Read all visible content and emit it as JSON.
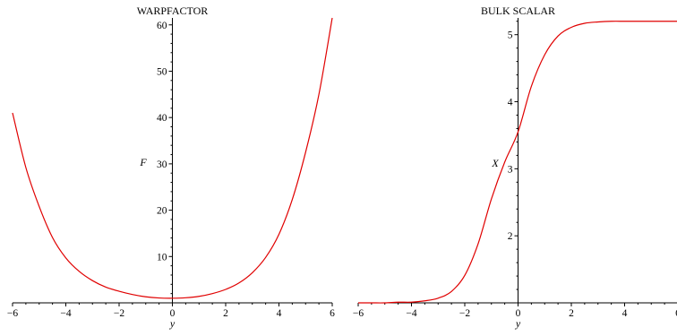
{
  "chart_data": [
    {
      "type": "line",
      "title": "WARPFACTOR",
      "xlabel": "y",
      "ylabel": "F",
      "xlim": [
        -6,
        6
      ],
      "ylim": [
        0,
        61.5
      ],
      "grid": false,
      "x_ticks": [
        -6,
        -4,
        -2,
        0,
        2,
        4,
        6
      ],
      "y_ticks": [
        10,
        20,
        30,
        40,
        50,
        60
      ],
      "series": [
        {
          "color": "#e00000",
          "x": [
            -6,
            -5.5,
            -5,
            -4.5,
            -4,
            -3.5,
            -3,
            -2.5,
            -2,
            -1.5,
            -1,
            -0.5,
            0,
            0.5,
            1,
            1.5,
            2,
            2.5,
            3,
            3.5,
            4,
            4.5,
            5,
            5.5,
            6
          ],
          "y": [
            41,
            29.2,
            20.8,
            14.1,
            9.7,
            6.8,
            4.8,
            3.4,
            2.5,
            1.8,
            1.3,
            1.05,
            1.0,
            1.1,
            1.4,
            2.0,
            2.9,
            4.3,
            6.5,
            9.8,
            14.8,
            22.3,
            32.5,
            45.0,
            61.5
          ]
        }
      ]
    },
    {
      "type": "line",
      "title": "BULK SCALAR",
      "xlabel": "y",
      "ylabel": "X",
      "xlim": [
        -6,
        6
      ],
      "ylim": [
        1,
        5.25
      ],
      "grid": false,
      "x_ticks": [
        -6,
        -4,
        -2,
        0,
        2,
        4,
        6
      ],
      "y_ticks": [
        2,
        3,
        4,
        5
      ],
      "series": [
        {
          "color": "#e00000",
          "x": [
            -6,
            -5.5,
            -5,
            -4.5,
            -4,
            -3.5,
            -3,
            -2.5,
            -2,
            -1.5,
            -1,
            -0.5,
            0,
            0.5,
            1,
            1.5,
            2,
            2.5,
            3,
            3.5,
            4,
            4.5,
            5,
            5.5,
            6
          ],
          "y": [
            1.0,
            1.0,
            1.0,
            1.01,
            1.01,
            1.03,
            1.07,
            1.17,
            1.41,
            1.88,
            2.55,
            3.1,
            3.55,
            4.23,
            4.7,
            4.98,
            5.11,
            5.17,
            5.19,
            5.2,
            5.2,
            5.2,
            5.2,
            5.2,
            5.2
          ]
        }
      ]
    }
  ]
}
